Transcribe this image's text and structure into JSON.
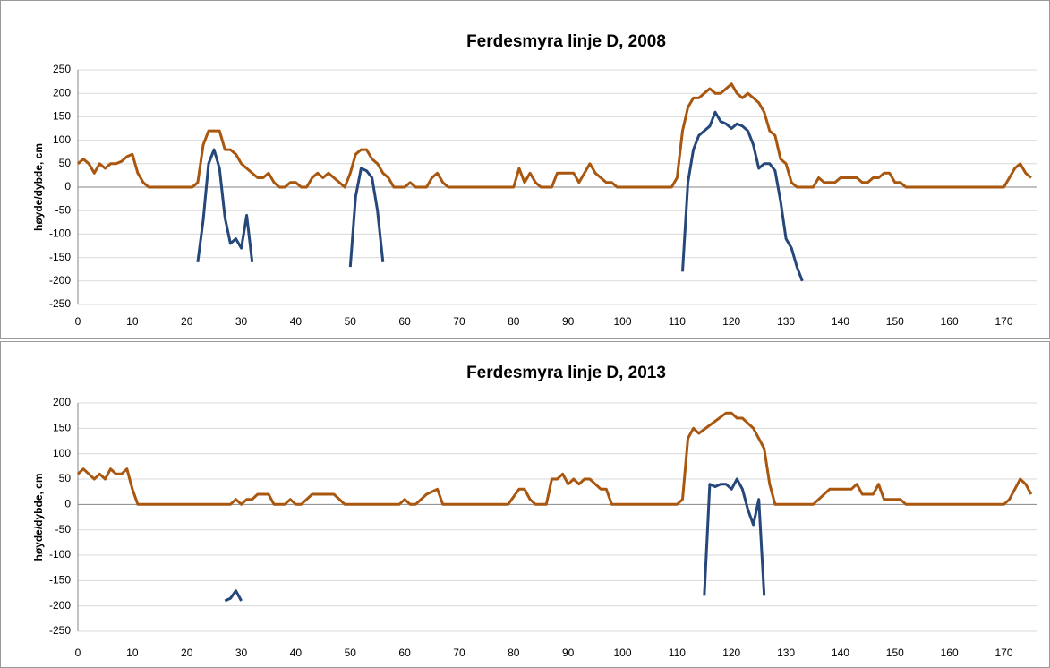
{
  "chart_data": [
    {
      "type": "line",
      "title": "Ferdesmyra linje D, 2008",
      "y_label": "høyde/dybde, cm",
      "xlim": [
        0,
        176
      ],
      "xticks": [
        0,
        10,
        20,
        30,
        40,
        50,
        60,
        70,
        80,
        90,
        100,
        110,
        120,
        130,
        140,
        150,
        160,
        170
      ],
      "ylim": [
        -250,
        250
      ],
      "yticks": [
        -250,
        -200,
        -150,
        -100,
        -50,
        0,
        50,
        100,
        150,
        200,
        250
      ],
      "grid": true,
      "series": [
        {
          "color": "#a9570f",
          "x": [
            0,
            1,
            2,
            3,
            4,
            5,
            6,
            7,
            8,
            9,
            10,
            11,
            12,
            13,
            21,
            22,
            23,
            24,
            26,
            27,
            28,
            29,
            30,
            31,
            32,
            33,
            34,
            35,
            36,
            37,
            38,
            39,
            40,
            41,
            42,
            43,
            44,
            45,
            46,
            47,
            48,
            49,
            50,
            51,
            52,
            53,
            54,
            55,
            56,
            57,
            58,
            60,
            61,
            62,
            64,
            65,
            66,
            67,
            68,
            80,
            81,
            82,
            83,
            84,
            85,
            87,
            88,
            91,
            92,
            93,
            94,
            95,
            96,
            97,
            98,
            99,
            109,
            110,
            111,
            112,
            113,
            114,
            115,
            116,
            117,
            118,
            119,
            120,
            121,
            122,
            123,
            124,
            125,
            126,
            127,
            128,
            129,
            130,
            131,
            132,
            135,
            136,
            137,
            139,
            140,
            143,
            144,
            145,
            146,
            147,
            148,
            149,
            150,
            151,
            152,
            170,
            171,
            172,
            173,
            174,
            175
          ],
          "values": [
            50,
            60,
            50,
            30,
            50,
            40,
            50,
            50,
            55,
            65,
            70,
            30,
            10,
            0,
            0,
            10,
            90,
            120,
            120,
            80,
            80,
            70,
            50,
            40,
            30,
            20,
            20,
            30,
            10,
            0,
            0,
            10,
            10,
            0,
            0,
            20,
            30,
            20,
            30,
            20,
            10,
            0,
            30,
            70,
            80,
            80,
            60,
            50,
            30,
            20,
            0,
            0,
            10,
            0,
            0,
            20,
            30,
            10,
            0,
            0,
            40,
            10,
            30,
            10,
            0,
            0,
            30,
            30,
            10,
            30,
            50,
            30,
            20,
            10,
            10,
            0,
            0,
            20,
            120,
            170,
            190,
            190,
            200,
            210,
            200,
            200,
            210,
            220,
            200,
            190,
            200,
            190,
            180,
            160,
            120,
            110,
            60,
            50,
            10,
            0,
            0,
            20,
            10,
            10,
            20,
            20,
            10,
            10,
            20,
            20,
            30,
            30,
            10,
            10,
            0,
            0,
            20,
            40,
            50,
            30,
            20
          ]
        },
        {
          "color": "#25477a",
          "x": [
            22,
            23,
            24,
            25,
            26,
            27,
            28,
            29,
            30,
            31,
            32,
            null,
            50,
            51,
            52,
            53,
            54,
            55,
            56,
            null,
            111,
            112,
            113,
            114,
            115,
            116,
            117,
            118,
            119,
            120,
            121,
            122,
            123,
            124,
            125,
            126,
            127,
            128,
            129,
            130,
            131,
            132,
            133
          ],
          "values": [
            -160,
            -70,
            50,
            80,
            40,
            -65,
            -120,
            -110,
            -130,
            -60,
            -160,
            null,
            -170,
            -20,
            40,
            35,
            20,
            -50,
            -160,
            null,
            -180,
            10,
            80,
            110,
            120,
            130,
            160,
            140,
            135,
            125,
            135,
            130,
            120,
            90,
            40,
            50,
            50,
            35,
            -30,
            -110,
            -130,
            -170,
            -200
          ]
        }
      ]
    },
    {
      "type": "line",
      "title": "Ferdesmyra linje D, 2013",
      "y_label": "høyde/dybde, cm",
      "xlim": [
        0,
        176
      ],
      "xticks": [
        0,
        10,
        20,
        30,
        40,
        50,
        60,
        70,
        80,
        90,
        100,
        110,
        120,
        130,
        140,
        150,
        160,
        170
      ],
      "ylim": [
        -250,
        200
      ],
      "yticks": [
        -250,
        -200,
        -150,
        -100,
        -50,
        0,
        50,
        100,
        150,
        200
      ],
      "grid": true,
      "series": [
        {
          "color": "#a9570f",
          "x": [
            0,
            1,
            2,
            3,
            4,
            5,
            6,
            7,
            8,
            9,
            10,
            11,
            28,
            29,
            30,
            31,
            32,
            33,
            35,
            36,
            38,
            39,
            40,
            41,
            43,
            47,
            49,
            59,
            60,
            61,
            62,
            64,
            66,
            67,
            79,
            81,
            82,
            83,
            84,
            86,
            87,
            88,
            89,
            90,
            91,
            92,
            93,
            94,
            95,
            96,
            97,
            98,
            110,
            111,
            112,
            113,
            114,
            119,
            120,
            121,
            122,
            124,
            125,
            126,
            127,
            128,
            135,
            138,
            141,
            142,
            143,
            144,
            146,
            147,
            148,
            151,
            152,
            170,
            171,
            172,
            173,
            174,
            175
          ],
          "values": [
            60,
            70,
            60,
            50,
            60,
            50,
            70,
            60,
            60,
            70,
            30,
            0,
            0,
            10,
            0,
            10,
            10,
            20,
            20,
            0,
            0,
            10,
            0,
            0,
            20,
            20,
            0,
            0,
            10,
            0,
            0,
            20,
            30,
            0,
            0,
            30,
            30,
            10,
            0,
            0,
            50,
            50,
            60,
            40,
            50,
            40,
            50,
            50,
            40,
            30,
            30,
            0,
            0,
            10,
            130,
            150,
            140,
            180,
            180,
            170,
            170,
            150,
            130,
            110,
            40,
            0,
            0,
            30,
            30,
            30,
            40,
            20,
            20,
            40,
            10,
            10,
            0,
            0,
            10,
            30,
            50,
            40,
            20
          ]
        },
        {
          "color": "#25477a",
          "x": [
            27,
            28,
            29,
            30,
            null,
            115,
            116,
            117,
            118,
            119,
            120,
            121,
            122,
            123,
            124,
            125,
            126
          ],
          "values": [
            -190,
            -185,
            -170,
            -190,
            null,
            -180,
            40,
            35,
            40,
            40,
            30,
            50,
            30,
            -10,
            -40,
            10,
            -180
          ]
        }
      ]
    }
  ]
}
